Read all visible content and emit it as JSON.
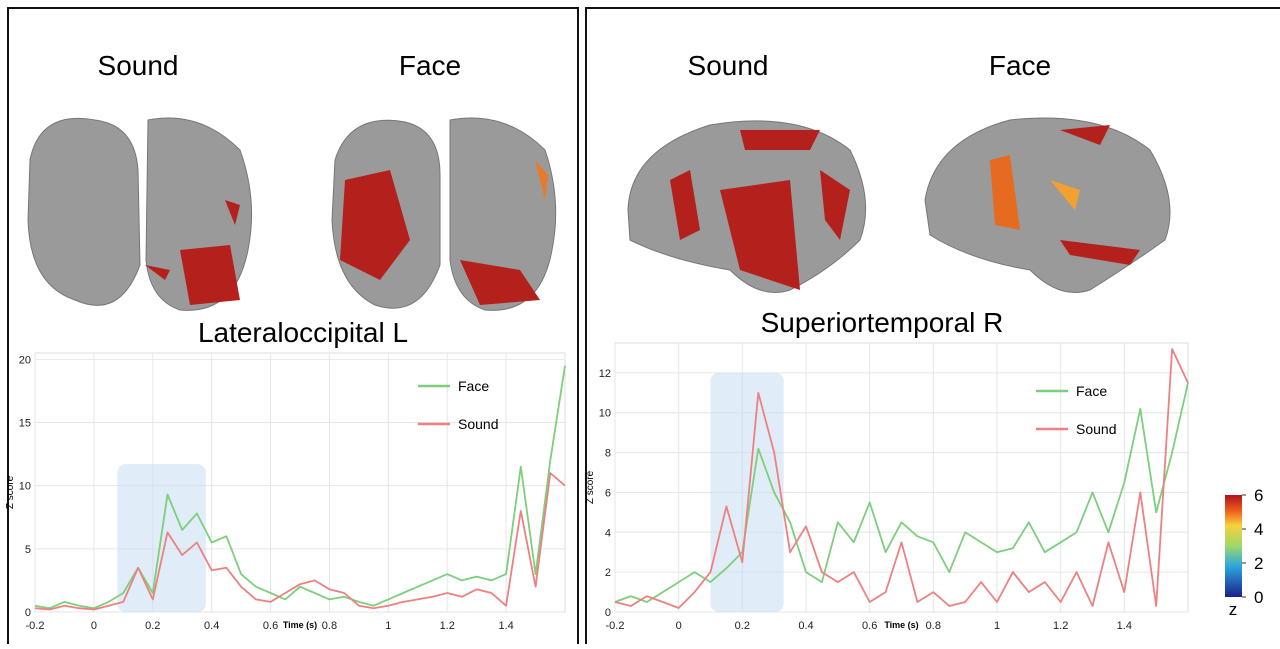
{
  "chart_data": [
    {
      "type": "line",
      "image_labels": [
        "Sound",
        "Face"
      ],
      "title": "Lateraloccipital L",
      "x_label": "Time (s)",
      "y_label": "Z score",
      "x": [
        -0.2,
        -0.15,
        -0.1,
        -0.05,
        0,
        0.05,
        0.1,
        0.15,
        0.2,
        0.25,
        0.3,
        0.35,
        0.4,
        0.45,
        0.5,
        0.55,
        0.6,
        0.65,
        0.7,
        0.75,
        0.8,
        0.85,
        0.9,
        0.95,
        1.0,
        1.05,
        1.1,
        1.15,
        1.2,
        1.25,
        1.3,
        1.35,
        1.4,
        1.45,
        1.5,
        1.55,
        1.6
      ],
      "series": [
        {
          "name": "Face",
          "color": "#7ccf7c",
          "values": [
            0.5,
            0.3,
            0.8,
            0.5,
            0.3,
            0.8,
            1.5,
            3.5,
            1.5,
            9.3,
            6.5,
            7.8,
            5.5,
            6,
            3,
            2,
            1.5,
            1,
            2,
            1.5,
            1,
            1.2,
            0.8,
            0.5,
            1,
            1.5,
            2,
            2.5,
            3,
            2.5,
            2.8,
            2.5,
            3,
            11.5,
            3,
            12,
            19.5
          ]
        },
        {
          "name": "Sound",
          "color": "#ee8080",
          "values": [
            0.3,
            0.2,
            0.5,
            0.3,
            0.2,
            0.5,
            0.8,
            3.5,
            1,
            6.3,
            4.5,
            5.5,
            3.3,
            3.5,
            2,
            1,
            0.8,
            1.5,
            2.2,
            2.5,
            1.8,
            1.5,
            0.5,
            0.3,
            0.5,
            0.8,
            1,
            1.2,
            1.5,
            1.2,
            1.8,
            1.5,
            0.5,
            8,
            2,
            11,
            10
          ]
        }
      ],
      "highlight": {
        "x": [
          0.08,
          0.38
        ],
        "y": [
          0,
          11.7
        ]
      },
      "xlim": [
        -0.2,
        1.6
      ],
      "xticks": [
        -0.2,
        0,
        0.2,
        0.4,
        0.6,
        0.8,
        1,
        1.2,
        1.4
      ],
      "ylim": [
        0,
        20.5
      ],
      "yticks": [
        0,
        5,
        10,
        15,
        20
      ],
      "grid": true
    },
    {
      "type": "line",
      "image_labels": [
        "Sound",
        "Face"
      ],
      "title": "Superiortemporal R",
      "x_label": "Time (s)",
      "y_label": "Z score",
      "x": [
        -0.2,
        -0.15,
        -0.1,
        -0.05,
        0,
        0.05,
        0.1,
        0.15,
        0.2,
        0.25,
        0.3,
        0.35,
        0.4,
        0.45,
        0.5,
        0.55,
        0.6,
        0.65,
        0.7,
        0.75,
        0.8,
        0.85,
        0.9,
        0.95,
        1.0,
        1.05,
        1.1,
        1.15,
        1.2,
        1.25,
        1.3,
        1.35,
        1.4,
        1.45,
        1.5,
        1.55,
        1.6
      ],
      "series": [
        {
          "name": "Face",
          "color": "#7ccf7c",
          "values": [
            0.5,
            0.8,
            0.5,
            1,
            1.5,
            2,
            1.5,
            2.2,
            3,
            8.2,
            6,
            4.5,
            2,
            1.5,
            4.5,
            3.5,
            5.5,
            3,
            4.5,
            3.8,
            3.5,
            2,
            4,
            3.5,
            3,
            3.2,
            4.5,
            3,
            3.5,
            4,
            6,
            4,
            6.5,
            10.2,
            5,
            8,
            11.5
          ]
        },
        {
          "name": "Sound",
          "color": "#ee8080",
          "values": [
            0.5,
            0.3,
            0.8,
            0.5,
            0.2,
            1,
            2,
            5.3,
            2.5,
            11,
            8,
            3,
            4.3,
            2,
            1.5,
            2,
            0.5,
            1,
            3.5,
            0.5,
            1,
            0.3,
            0.5,
            1.5,
            0.5,
            2,
            1,
            1.5,
            0.5,
            2,
            0.3,
            3.5,
            1,
            6,
            0.3,
            13.2,
            11.5
          ]
        }
      ],
      "highlight": {
        "x": [
          0.1,
          0.33
        ],
        "y": [
          0,
          12
        ]
      },
      "xlim": [
        -0.2,
        1.6
      ],
      "xticks": [
        -0.2,
        0,
        0.2,
        0.4,
        0.6,
        0.8,
        1,
        1.2,
        1.4
      ],
      "ylim": [
        0,
        13.5
      ],
      "yticks": [
        0,
        2,
        4,
        6,
        8,
        10,
        12
      ],
      "grid": true
    }
  ],
  "colorbar": {
    "label": "z",
    "lim": [
      0,
      6
    ],
    "ticks": [
      6,
      4,
      2,
      0
    ]
  }
}
